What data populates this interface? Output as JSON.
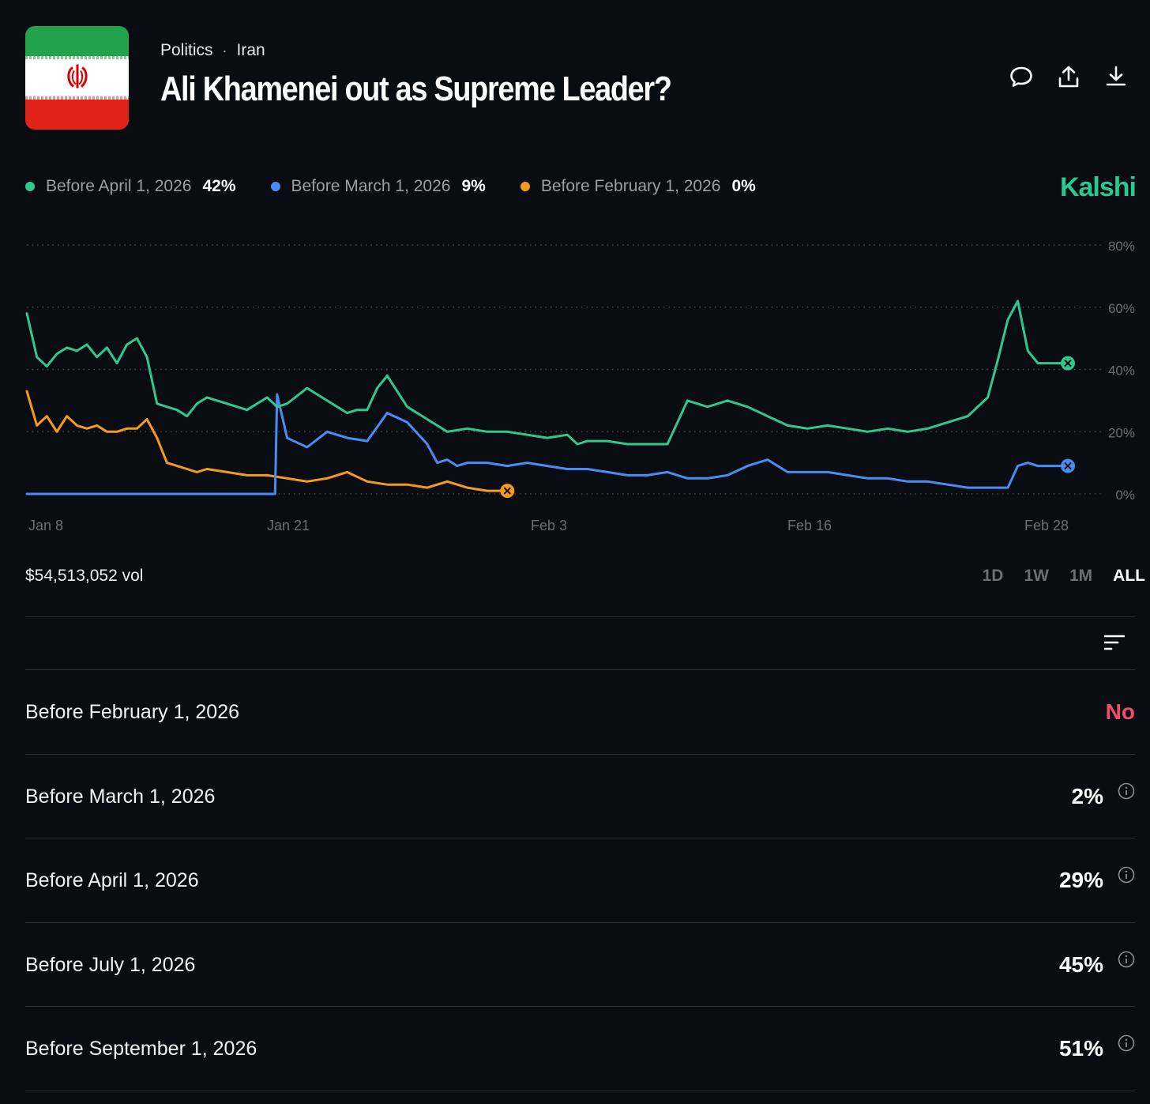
{
  "header": {
    "category": "Politics",
    "subcategory": "Iran",
    "title": "Ali Khamenei out as Supreme Leader?",
    "icons": [
      "comment-icon",
      "share-icon",
      "download-icon"
    ]
  },
  "legend": [
    {
      "label": "Before April 1, 2026",
      "value": "42%",
      "color": "#2ec98e"
    },
    {
      "label": "Before March 1, 2026",
      "value": "9%",
      "color": "#4a8cf5"
    },
    {
      "label": "Before February 1, 2026",
      "value": "0%",
      "color": "#f59b1c"
    }
  ],
  "brand": "Kalshi",
  "volume": "$54,513,052 vol",
  "ranges": [
    "1D",
    "1W",
    "1M",
    "ALL"
  ],
  "active_range": "ALL",
  "markets": [
    {
      "label": "Before February 1, 2026",
      "value": "No",
      "resolved": true
    },
    {
      "label": "Before March 1, 2026",
      "value": "2%"
    },
    {
      "label": "Before April 1, 2026",
      "value": "29%"
    },
    {
      "label": "Before July 1, 2026",
      "value": "45%"
    },
    {
      "label": "Before September 1, 2026",
      "value": "51%"
    }
  ],
  "chart_data": {
    "type": "line",
    "x_ticks": [
      "Jan 8",
      "Jan 21",
      "Feb 3",
      "Feb 16",
      "Feb 28"
    ],
    "y_ticks": [
      "0%",
      "20%",
      "40%",
      "60%",
      "80%"
    ],
    "ylim": [
      0,
      80
    ],
    "x_domain_days": [
      0,
      52
    ],
    "series": [
      {
        "name": "Before April 1, 2026",
        "color": "#2ec98e",
        "x": [
          0,
          0.5,
          1,
          1.5,
          2,
          2.5,
          3,
          3.5,
          4,
          4.5,
          5,
          5.5,
          6,
          6.5,
          7,
          7.5,
          8,
          8.5,
          9,
          10,
          11,
          12,
          12.5,
          13,
          14,
          15,
          16,
          16.5,
          17,
          17.5,
          18,
          19,
          20,
          20.5,
          21,
          22,
          23,
          24,
          25,
          26,
          27,
          27.5,
          28,
          29,
          30,
          31,
          32,
          33,
          34,
          35,
          36,
          37,
          38,
          39,
          40,
          41,
          42,
          43,
          44,
          45,
          46,
          47,
          48,
          48.5,
          49,
          49.5,
          50,
          50.5,
          51,
          51.3,
          51.6,
          51.8,
          52
        ],
        "y": [
          58,
          44,
          41,
          45,
          47,
          46,
          48,
          44,
          47,
          42,
          48,
          50,
          44,
          29,
          28,
          27,
          25,
          29,
          31,
          29,
          27,
          31,
          28,
          29,
          34,
          30,
          26,
          27,
          27,
          34,
          38,
          28,
          24,
          22,
          20,
          21,
          20,
          20,
          19,
          18,
          19,
          16,
          17,
          17,
          16,
          16,
          16,
          30,
          28,
          30,
          28,
          25,
          22,
          21,
          22,
          21,
          20,
          21,
          20,
          21,
          23,
          25,
          31,
          43,
          56,
          62,
          46,
          42,
          42,
          42,
          42,
          42,
          42
        ]
      },
      {
        "name": "Before March 1, 2026",
        "color": "#4a8cf5",
        "x": [
          0,
          12.4,
          12.5,
          13,
          14,
          15,
          16,
          17,
          18,
          19,
          20,
          20.5,
          21,
          21.5,
          22,
          23,
          24,
          25,
          26,
          27,
          28,
          29,
          30,
          31,
          32,
          33,
          34,
          35,
          36,
          37,
          38,
          39,
          40,
          41,
          42,
          43,
          44,
          45,
          46,
          47,
          48,
          49,
          49.5,
          50,
          50.5,
          51,
          51.3,
          51.6,
          51.8,
          52
        ],
        "y": [
          0,
          0,
          32,
          18,
          15,
          20,
          18,
          17,
          26,
          23,
          16,
          10,
          11,
          9,
          10,
          10,
          9,
          10,
          9,
          8,
          8,
          7,
          6,
          6,
          7,
          5,
          5,
          6,
          9,
          11,
          7,
          7,
          7,
          6,
          5,
          5,
          4,
          4,
          3,
          2,
          2,
          2,
          9,
          10,
          9,
          9,
          9,
          9,
          9,
          9
        ]
      },
      {
        "name": "Before February 1, 2026",
        "color": "#f59b1c",
        "x": [
          0,
          0.5,
          1,
          1.5,
          2,
          2.5,
          3,
          3.5,
          4,
          4.5,
          5,
          5.5,
          6,
          6.5,
          7,
          7.5,
          8,
          8.5,
          9,
          10,
          11,
          12,
          13,
          14,
          15,
          16,
          17,
          18,
          19,
          20,
          21,
          22,
          23,
          23.5,
          24
        ],
        "y": [
          33,
          22,
          25,
          20,
          25,
          22,
          21,
          22,
          20,
          20,
          21,
          21,
          24,
          18,
          10,
          9,
          8,
          7,
          8,
          7,
          6,
          6,
          5,
          4,
          5,
          7,
          4,
          3,
          3,
          2,
          4,
          2,
          1,
          1,
          1
        ]
      }
    ]
  }
}
